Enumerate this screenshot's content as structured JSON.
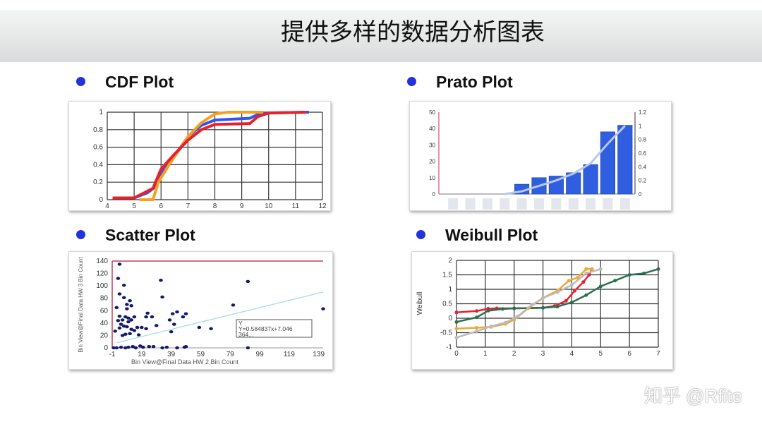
{
  "slide": {
    "title": "提供多样的数据分析图表",
    "watermark": "知乎 @Rfite",
    "bullet_color": "#2233dd"
  },
  "sections": [
    {
      "label": "CDF Plot"
    },
    {
      "label": "Prato Plot"
    },
    {
      "label": "Scatter Plot"
    },
    {
      "label": "Weibull Plot"
    }
  ],
  "chart_data": [
    {
      "type": "line",
      "title": "CDF Plot",
      "xlim": [
        4,
        12
      ],
      "ylim": [
        0,
        1
      ],
      "grid": true,
      "xticks": [
        4,
        5,
        6,
        7,
        8,
        9,
        10,
        11,
        12
      ],
      "yticks": [
        0,
        0.2,
        0.4,
        0.6,
        0.8,
        1
      ],
      "series": [
        {
          "color": "#3355ee",
          "points": [
            [
              4.2,
              0.02
            ],
            [
              5,
              0.02
            ],
            [
              5.5,
              0.08
            ],
            [
              5.8,
              0.15
            ],
            [
              6,
              0.3
            ],
            [
              6.5,
              0.5
            ],
            [
              7,
              0.72
            ],
            [
              7.5,
              0.85
            ],
            [
              8,
              0.91
            ],
            [
              9.3,
              0.93
            ],
            [
              9.7,
              0.99
            ],
            [
              11.5,
              1
            ]
          ]
        },
        {
          "color": "#f5a020",
          "points": [
            [
              5.2,
              0
            ],
            [
              5.7,
              0
            ],
            [
              5.9,
              0.2
            ],
            [
              6.3,
              0.4
            ],
            [
              7,
              0.72
            ],
            [
              7.5,
              0.88
            ],
            [
              8,
              0.98
            ],
            [
              8.5,
              1
            ],
            [
              9.8,
              1
            ]
          ]
        },
        {
          "color": "#e8202a",
          "points": [
            [
              4.2,
              0.02
            ],
            [
              5,
              0.02
            ],
            [
              5.7,
              0.13
            ],
            [
              6,
              0.35
            ],
            [
              6.5,
              0.52
            ],
            [
              7,
              0.68
            ],
            [
              7.5,
              0.8
            ],
            [
              8,
              0.86
            ],
            [
              9.3,
              0.87
            ],
            [
              9.6,
              0.95
            ],
            [
              10,
              0.99
            ],
            [
              11.4,
              1
            ]
          ]
        }
      ]
    },
    {
      "type": "bar",
      "title": "Prato Plot",
      "ylim": [
        0,
        50
      ],
      "y2lim": [
        0,
        1.2
      ],
      "grid": false,
      "yticks": [
        0,
        10,
        20,
        30,
        40,
        50
      ],
      "y2ticks": [
        0,
        0.2,
        0.4,
        0.6,
        0.8,
        1,
        1.2
      ],
      "bar_color": "#2f5fe0",
      "line_color": "#b8c8e8",
      "values": [
        0,
        0,
        0,
        0,
        6,
        10,
        11,
        13,
        18,
        38,
        42
      ],
      "cumulative": [
        0,
        0,
        0,
        0,
        0.04,
        0.12,
        0.2,
        0.3,
        0.45,
        0.74,
        1
      ]
    },
    {
      "type": "scatter",
      "title": "Scatter Plot",
      "xlim": [
        -1,
        142
      ],
      "ylim": [
        0,
        140
      ],
      "grid": false,
      "xticks": [
        -1,
        19,
        39,
        59,
        79,
        99,
        119,
        139
      ],
      "yticks": [
        0,
        20,
        40,
        60,
        80,
        100,
        120,
        140
      ],
      "xlabel": "Bin View@Final Data HW 2 Bin Count",
      "ylabel": "Bin View@Final Data HW 3 Bin Count",
      "point_color": "#141a6a",
      "trend_color": "#a8dde0",
      "trend": {
        "slope": 0.584837,
        "intercept": 7.046
      },
      "annotation": [
        "Y",
        "Y=0.584837x+7.046",
        "364..."
      ],
      "points": [
        [
          4,
          135
        ],
        [
          3,
          112
        ],
        [
          7,
          101
        ],
        [
          4,
          87
        ],
        [
          7,
          81
        ],
        [
          9,
          70
        ],
        [
          11,
          76
        ],
        [
          12,
          68
        ],
        [
          9,
          63
        ],
        [
          2,
          65
        ],
        [
          4,
          51
        ],
        [
          3,
          44
        ],
        [
          6,
          45
        ],
        [
          8,
          50
        ],
        [
          10,
          48
        ],
        [
          12,
          45
        ],
        [
          14,
          50
        ],
        [
          5,
          38
        ],
        [
          4,
          32
        ],
        [
          7,
          35
        ],
        [
          9,
          34
        ],
        [
          10,
          42
        ],
        [
          12,
          30
        ],
        [
          8,
          22
        ],
        [
          11,
          23
        ],
        [
          14,
          28
        ],
        [
          16,
          33
        ],
        [
          19,
          33
        ],
        [
          17,
          21
        ],
        [
          6,
          20
        ],
        [
          1,
          27
        ],
        [
          22,
          50
        ],
        [
          23,
          56
        ],
        [
          26,
          50
        ],
        [
          22,
          31
        ],
        [
          29,
          36
        ],
        [
          32,
          109
        ],
        [
          33,
          82
        ],
        [
          38,
          45
        ],
        [
          40,
          55
        ],
        [
          43,
          58
        ],
        [
          41,
          38
        ],
        [
          39,
          26
        ],
        [
          47,
          50
        ],
        [
          49,
          55
        ],
        [
          58,
          33
        ],
        [
          66,
          31
        ],
        [
          81,
          69
        ],
        [
          91,
          107
        ],
        [
          142,
          63
        ],
        [
          0,
          0
        ],
        [
          2,
          0
        ],
        [
          5,
          1
        ],
        [
          8,
          0
        ],
        [
          10,
          1
        ],
        [
          13,
          2
        ],
        [
          15,
          0
        ],
        [
          18,
          3
        ],
        [
          20,
          1
        ],
        [
          24,
          2
        ],
        [
          27,
          2
        ],
        [
          33,
          0
        ],
        [
          36,
          1
        ],
        [
          43,
          0
        ],
        [
          48,
          1
        ],
        [
          49,
          2
        ],
        [
          91,
          0
        ]
      ]
    },
    {
      "type": "line",
      "title": "Weibull Plot",
      "xlim": [
        0,
        7
      ],
      "ylim": [
        -1,
        2
      ],
      "grid": true,
      "xticks": [
        0,
        1,
        2,
        3,
        4,
        5,
        6,
        7
      ],
      "yticks": [
        -1,
        -0.5,
        0,
        0.5,
        1,
        1.5,
        2
      ],
      "ylabel": "Weibull",
      "series": [
        {
          "color": "#e82030",
          "points": [
            [
              0,
              0.2
            ],
            [
              0.7,
              0.25
            ],
            [
              1.1,
              0.33
            ],
            [
              1.4,
              0.34
            ],
            [
              2,
              0.34
            ],
            [
              3,
              0.36
            ],
            [
              3.4,
              0.42
            ],
            [
              3.8,
              0.6
            ],
            [
              4.1,
              0.95
            ],
            [
              4.4,
              1.25
            ],
            [
              4.6,
              1.5
            ],
            [
              4.7,
              1.7
            ]
          ]
        },
        {
          "color": "#2a7050",
          "points": [
            [
              0,
              -0.13
            ],
            [
              0.7,
              0.03
            ],
            [
              1.1,
              0.26
            ],
            [
              1.6,
              0.32
            ],
            [
              2,
              0.34
            ],
            [
              3,
              0.36
            ],
            [
              3.5,
              0.4
            ],
            [
              4,
              0.55
            ],
            [
              4.5,
              0.8
            ],
            [
              5,
              1.1
            ],
            [
              5.5,
              1.3
            ],
            [
              6,
              1.5
            ],
            [
              6.5,
              1.55
            ],
            [
              7,
              1.7
            ]
          ]
        },
        {
          "color": "#f0a830",
          "points": [
            [
              0,
              -0.36
            ],
            [
              0.7,
              -0.33
            ],
            [
              1.2,
              -0.3
            ],
            [
              1.7,
              -0.2
            ],
            [
              2,
              -0.05
            ],
            [
              2.5,
              0.35
            ],
            [
              3,
              0.7
            ],
            [
              3.5,
              0.95
            ],
            [
              3.9,
              1.3
            ],
            [
              4.2,
              1.4
            ],
            [
              4.5,
              1.7
            ],
            [
              4.7,
              1.7
            ]
          ]
        },
        {
          "color": "#bbbbbb",
          "points": [
            [
              0,
              -0.67
            ],
            [
              0.7,
              -0.45
            ],
            [
              1.2,
              -0.28
            ],
            [
              1.7,
              -0.15
            ],
            [
              2.1,
              0.05
            ],
            [
              2.6,
              0.45
            ],
            [
              3,
              0.7
            ],
            [
              3.5,
              0.9
            ],
            [
              4,
              1.15
            ],
            [
              4.5,
              1.55
            ],
            [
              5,
              1.7
            ]
          ]
        }
      ]
    }
  ]
}
